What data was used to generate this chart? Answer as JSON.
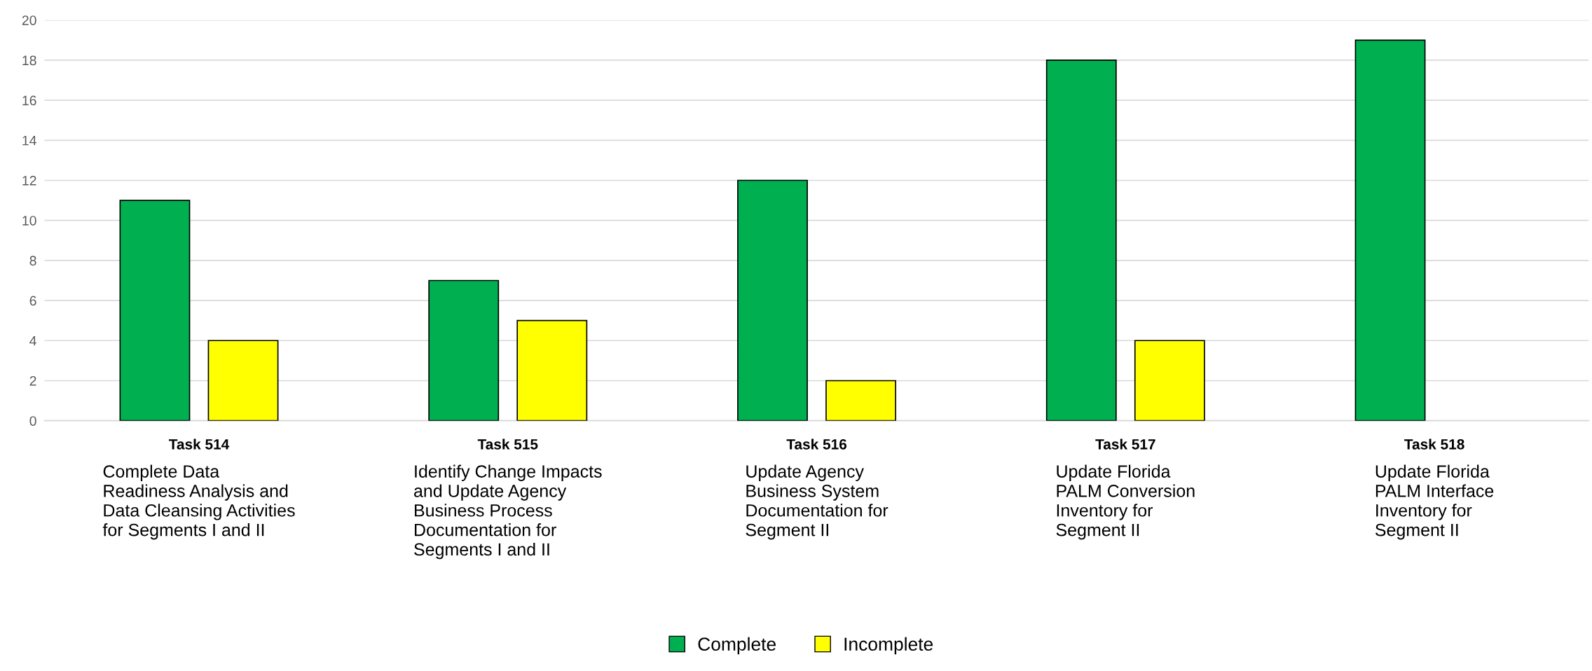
{
  "chart_data": {
    "type": "bar",
    "categories": [
      "Task 514\nComplete Data\nReadiness Analysis and\nData Cleansing Activities\nfor Segments I and II",
      "Task 515\nIdentify Change Impacts\nand Update Agency\nBusiness Process\nDocumentation for\nSegments I and II",
      "Task 516\nUpdate Agency\nBusiness System\nDocumentation for\nSegment II",
      "Task 517\nUpdate Florida\nPALM Conversion\nInventory for\nSegment II",
      "Task 518\nUpdate Florida\nPALM Interface\nInventory for\nSegment II"
    ],
    "series": [
      {
        "name": "Complete",
        "color": "#00b050",
        "values": [
          11,
          7,
          12,
          18,
          19
        ]
      },
      {
        "name": "Incomplete",
        "color": "#ffff00",
        "values": [
          4,
          5,
          2,
          4,
          null
        ]
      }
    ],
    "ylim": [
      0,
      20
    ],
    "yticks": [
      0,
      2,
      4,
      6,
      8,
      10,
      12,
      14,
      16,
      18,
      20
    ],
    "grid": "y",
    "legend": "bottom"
  }
}
